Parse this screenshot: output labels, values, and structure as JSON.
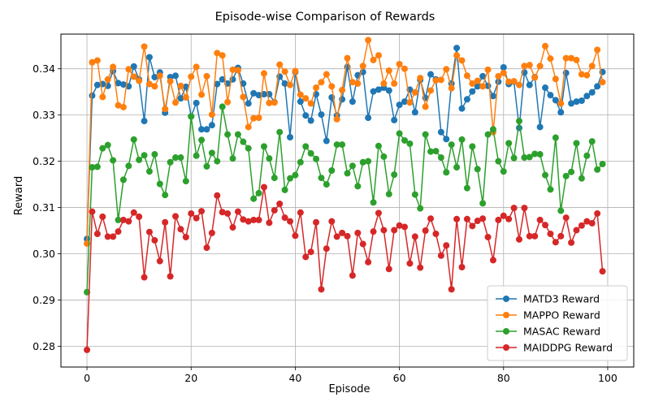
{
  "chart_data": {
    "type": "line",
    "title": "Episode-wise Comparison of Rewards",
    "xlabel": "Episode",
    "ylabel": "Reward",
    "xlim": [
      -5,
      105
    ],
    "ylim": [
      0.2755,
      0.3475
    ],
    "xticks": [
      0,
      20,
      40,
      60,
      80,
      100
    ],
    "yticks": [
      0.28,
      0.29,
      0.3,
      0.31,
      0.32,
      0.33,
      0.34
    ],
    "ytick_labels": [
      "0.28",
      "0.29",
      "0.30",
      "0.31",
      "0.32",
      "0.33",
      "0.34"
    ],
    "grid": true,
    "legend_position": "bottom-right",
    "series": [
      {
        "name": "MATD3 Reward",
        "color": "#1f77b4",
        "values": [
          0.3032,
          0.3342,
          0.3365,
          0.3367,
          0.3363,
          0.3395,
          0.3369,
          0.3366,
          0.3362,
          0.3405,
          0.3377,
          0.3287,
          0.3425,
          0.3382,
          0.3392,
          0.3305,
          0.3382,
          0.3385,
          0.3336,
          0.3361,
          0.3297,
          0.3326,
          0.3269,
          0.3269,
          0.3278,
          0.3367,
          0.3377,
          0.3368,
          0.3377,
          0.3402,
          0.3368,
          0.3325,
          0.3347,
          0.3343,
          0.3345,
          0.3345,
          0.3328,
          0.3383,
          0.3368,
          0.3252,
          0.3393,
          0.3329,
          0.3299,
          0.3288,
          0.3345,
          0.3301,
          0.3244,
          0.3338,
          0.3299,
          0.3334,
          0.3404,
          0.3329,
          0.3386,
          0.3393,
          0.3294,
          0.3351,
          0.3355,
          0.3359,
          0.3353,
          0.3289,
          0.3322,
          0.3329,
          0.3355,
          0.3306,
          0.3376,
          0.3337,
          0.3388,
          0.3377,
          0.3263,
          0.3248,
          0.3368,
          0.3445,
          0.3314,
          0.3334,
          0.3351,
          0.3362,
          0.3384,
          0.3363,
          0.3341,
          0.3372,
          0.3403,
          0.3367,
          0.3372,
          0.3272,
          0.3392,
          0.3365,
          0.3382,
          0.3274,
          0.3359,
          0.3343,
          0.3332,
          0.3306,
          0.3391,
          0.3325,
          0.3329,
          0.3331,
          0.3341,
          0.3349,
          0.3362,
          0.3393
        ]
      },
      {
        "name": "MAPPO Reward",
        "color": "#ff7f0e",
        "values": [
          0.3022,
          0.3414,
          0.3418,
          0.3339,
          0.3377,
          0.3404,
          0.3321,
          0.3317,
          0.3399,
          0.3383,
          0.3374,
          0.3448,
          0.3367,
          0.3362,
          0.3385,
          0.3313,
          0.3373,
          0.3327,
          0.3363,
          0.3338,
          0.3383,
          0.3404,
          0.3344,
          0.3384,
          0.3301,
          0.3434,
          0.3429,
          0.3328,
          0.3398,
          0.3397,
          0.3339,
          0.3274,
          0.3293,
          0.3294,
          0.339,
          0.3326,
          0.3327,
          0.3409,
          0.3394,
          0.3365,
          0.3395,
          0.3344,
          0.3336,
          0.3325,
          0.3359,
          0.3371,
          0.3388,
          0.3362,
          0.3291,
          0.3354,
          0.3423,
          0.3371,
          0.3368,
          0.3406,
          0.3462,
          0.3419,
          0.3429,
          0.3368,
          0.3396,
          0.3368,
          0.341,
          0.34,
          0.3327,
          0.3349,
          0.338,
          0.3318,
          0.3353,
          0.3375,
          0.3376,
          0.3399,
          0.3358,
          0.3429,
          0.3418,
          0.3385,
          0.3368,
          0.3374,
          0.3362,
          0.3398,
          0.3263,
          0.3384,
          0.3391,
          0.3372,
          0.3373,
          0.3365,
          0.3406,
          0.3408,
          0.3381,
          0.3406,
          0.3449,
          0.3422,
          0.3378,
          0.3325,
          0.3423,
          0.3423,
          0.3419,
          0.3388,
          0.3386,
          0.3406,
          0.3441,
          0.3371
        ]
      },
      {
        "name": "MASAC Reward",
        "color": "#2ca02c",
        "values": [
          0.2917,
          0.3187,
          0.3188,
          0.3228,
          0.3235,
          0.3202,
          0.3073,
          0.316,
          0.319,
          0.3247,
          0.3203,
          0.3213,
          0.3178,
          0.3215,
          0.3151,
          0.3127,
          0.3198,
          0.3208,
          0.3208,
          0.3157,
          0.3297,
          0.3212,
          0.3246,
          0.3189,
          0.3218,
          0.32,
          0.3318,
          0.3258,
          0.3206,
          0.3258,
          0.3242,
          0.3228,
          0.3119,
          0.3131,
          0.3232,
          0.3206,
          0.3164,
          0.3263,
          0.3138,
          0.3163,
          0.317,
          0.3198,
          0.3232,
          0.3217,
          0.3205,
          0.3164,
          0.315,
          0.318,
          0.3236,
          0.3236,
          0.3174,
          0.319,
          0.3146,
          0.3198,
          0.32,
          0.3111,
          0.3233,
          0.321,
          0.3129,
          0.3171,
          0.326,
          0.3245,
          0.3238,
          0.3128,
          0.3098,
          0.3258,
          0.3221,
          0.3222,
          0.3208,
          0.3176,
          0.3236,
          0.3187,
          0.3247,
          0.3142,
          0.3232,
          0.3183,
          0.3109,
          0.3258,
          0.3269,
          0.32,
          0.3178,
          0.3239,
          0.3207,
          0.3287,
          0.3208,
          0.3209,
          0.3216,
          0.3215,
          0.317,
          0.3139,
          0.3251,
          0.3093,
          0.3168,
          0.3177,
          0.3239,
          0.3163,
          0.3212,
          0.3243,
          0.3182,
          0.3194
        ]
      },
      {
        "name": "MAIDDPG Reward",
        "color": "#d62728",
        "values": [
          0.2792,
          0.3091,
          0.3043,
          0.308,
          0.3037,
          0.3037,
          0.3048,
          0.3073,
          0.307,
          0.3089,
          0.308,
          0.2949,
          0.3047,
          0.3029,
          0.2984,
          0.3068,
          0.2951,
          0.3081,
          0.3053,
          0.3036,
          0.3087,
          0.3077,
          0.3092,
          0.3013,
          0.3045,
          0.3126,
          0.309,
          0.3087,
          0.3057,
          0.3091,
          0.3074,
          0.307,
          0.3073,
          0.3073,
          0.3144,
          0.3067,
          0.3094,
          0.3108,
          0.3078,
          0.307,
          0.3039,
          0.3089,
          0.2993,
          0.3004,
          0.3068,
          0.2923,
          0.3011,
          0.307,
          0.3037,
          0.3045,
          0.3038,
          0.2953,
          0.3045,
          0.3021,
          0.2982,
          0.3048,
          0.3088,
          0.3051,
          0.2967,
          0.3051,
          0.3061,
          0.3058,
          0.2979,
          0.3037,
          0.297,
          0.305,
          0.3076,
          0.3043,
          0.2996,
          0.3018,
          0.2923,
          0.3075,
          0.2971,
          0.3075,
          0.306,
          0.3071,
          0.3076,
          0.3036,
          0.2986,
          0.3073,
          0.3082,
          0.3075,
          0.3099,
          0.3031,
          0.3099,
          0.3038,
          0.3038,
          0.3073,
          0.3062,
          0.3043,
          0.3025,
          0.3038,
          0.3078,
          0.3024,
          0.3051,
          0.3061,
          0.307,
          0.3066,
          0.3087,
          0.2962
        ]
      }
    ]
  }
}
